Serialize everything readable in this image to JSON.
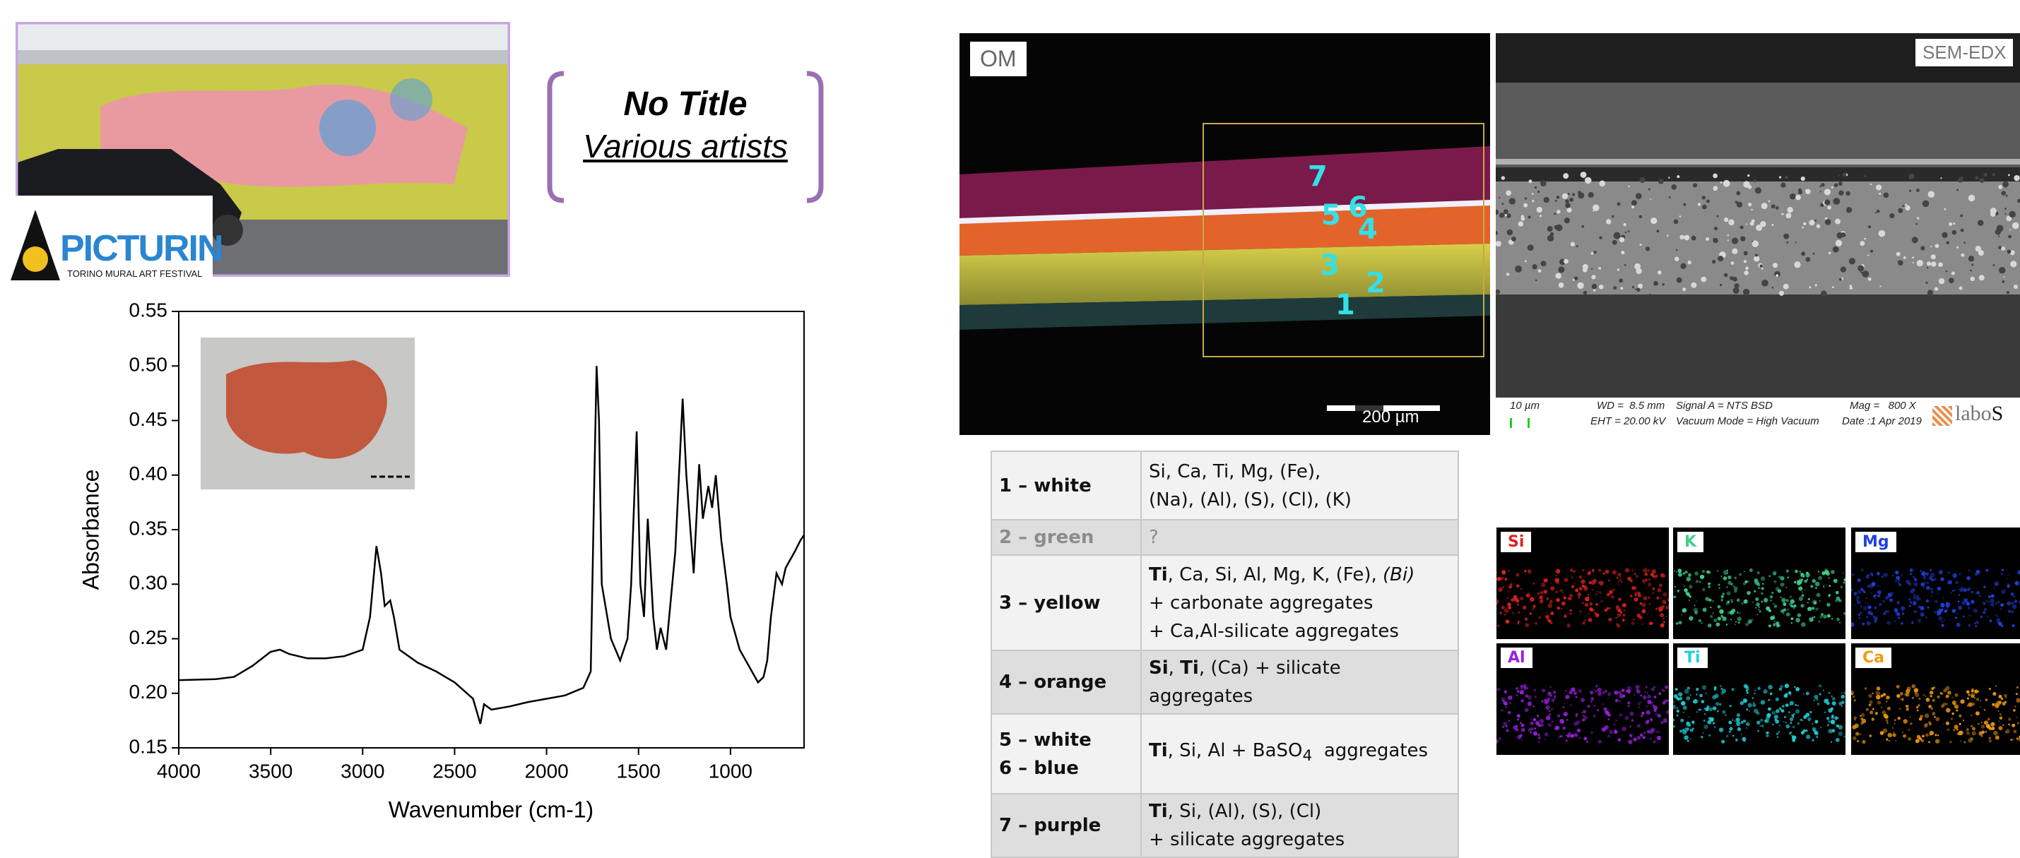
{
  "header": {
    "title": "No Title",
    "subtitle": "Various artists",
    "logo_text": "PICTURIN",
    "logo_subtitle": "TORINO MURAL ART FESTIVAL"
  },
  "chart_data": {
    "type": "line",
    "x_label": "Wavenumber (cm-1)",
    "y_label": "Absorbance",
    "color": "#000000",
    "x": [
      4000,
      3800,
      3700,
      3600,
      3500,
      3450,
      3400,
      3300,
      3200,
      3100,
      3000,
      2960,
      2925,
      2900,
      2880,
      2850,
      2830,
      2800,
      2700,
      2600,
      2500,
      2400,
      2360,
      2340,
      2300,
      2200,
      2100,
      2000,
      1900,
      1800,
      1760,
      1740,
      1728,
      1715,
      1700,
      1650,
      1600,
      1560,
      1540,
      1510,
      1490,
      1470,
      1450,
      1420,
      1400,
      1380,
      1350,
      1300,
      1260,
      1240,
      1200,
      1170,
      1150,
      1120,
      1100,
      1080,
      1050,
      1020,
      1000,
      950,
      900,
      850,
      820,
      800,
      780,
      750,
      720,
      700,
      650,
      620,
      600
    ],
    "values": [
      0.212,
      0.213,
      0.215,
      0.225,
      0.238,
      0.24,
      0.236,
      0.232,
      0.232,
      0.234,
      0.24,
      0.27,
      0.335,
      0.31,
      0.28,
      0.285,
      0.27,
      0.24,
      0.228,
      0.22,
      0.21,
      0.195,
      0.172,
      0.19,
      0.185,
      0.188,
      0.192,
      0.195,
      0.198,
      0.205,
      0.22,
      0.4,
      0.5,
      0.45,
      0.3,
      0.25,
      0.23,
      0.25,
      0.3,
      0.44,
      0.3,
      0.27,
      0.36,
      0.27,
      0.24,
      0.26,
      0.24,
      0.33,
      0.47,
      0.4,
      0.31,
      0.41,
      0.36,
      0.39,
      0.37,
      0.4,
      0.34,
      0.3,
      0.27,
      0.24,
      0.225,
      0.21,
      0.215,
      0.23,
      0.27,
      0.31,
      0.3,
      0.315,
      0.33,
      0.34,
      0.345
    ],
    "xlim": [
      4000,
      600
    ],
    "xticks": [
      4000,
      3500,
      3000,
      2500,
      2000,
      1500,
      1000
    ],
    "ylim": [
      0.15,
      0.55
    ],
    "yticks": [
      0.15,
      {
        "value": 0.2,
        "label": "0.20"
      },
      0.25,
      {
        "value": 0.3,
        "label": "0.30"
      },
      0.35,
      {
        "value": 0.4,
        "label": "0.40"
      },
      0.45,
      {
        "value": 0.5,
        "label": "0.50"
      },
      0.55
    ]
  },
  "om": {
    "label": "OM",
    "points": [
      "7",
      "5",
      "6",
      "4",
      "3",
      "2",
      "1"
    ],
    "scale_bar": "200 µm"
  },
  "sem": {
    "label": "SEM-EDX",
    "scale": "10 µm",
    "wd": "WD =  8.5 mm",
    "eht": "EHT = 20.00 kV",
    "signal": "Signal A = NTS BSD",
    "vacuum": "Vacuum Mode = High Vacuum",
    "mag": "Mag =   800 X",
    "date": "Date :1 Apr 2019",
    "logo": [
      "labo",
      "S"
    ]
  },
  "table": {
    "rows": [
      {
        "label": [
          "1 – white"
        ],
        "text": [
          [
            "Si, Ca, Ti, Mg, (Fe),"
          ],
          [
            "(Na), (Al), (S), (Cl), (K)"
          ]
        ]
      },
      {
        "label": [
          "2 – green"
        ],
        "text": [
          [
            "?"
          ]
        ]
      },
      {
        "label": [
          "3 – yellow"
        ],
        "text": [
          [
            "Ti",
            ", Ca, Si, Al, Mg, K, (Fe), ",
            "(Bi)"
          ],
          [
            "+ carbonate aggregates"
          ],
          [
            "+ Ca,Al-silicate aggregates"
          ]
        ]
      },
      {
        "label": [
          "4 – orange"
        ],
        "text": [
          [
            "Si",
            ", ",
            "Ti",
            ", (Ca) + silicate aggregates"
          ]
        ]
      },
      {
        "label": [
          "5 – white",
          "6 – blue"
        ],
        "text": [
          [
            "Ti",
            ", Si, Al + BaSO",
            "4",
            "  aggregates"
          ]
        ]
      },
      {
        "label": [
          "7 – purple"
        ],
        "text": [
          [
            "Ti",
            ", Si, (Al), (S), (Cl)"
          ],
          [
            "+ silicate aggregates"
          ]
        ]
      }
    ]
  },
  "maps": [
    {
      "element": "Si",
      "color": "#e02020"
    },
    {
      "element": "K",
      "color": "#3fd08a"
    },
    {
      "element": "Mg",
      "color": "#2040e0"
    },
    {
      "element": "Al",
      "color": "#9a20e0"
    },
    {
      "element": "Ti",
      "color": "#20d0d8"
    },
    {
      "element": "Ca",
      "color": "#f09a10"
    }
  ]
}
